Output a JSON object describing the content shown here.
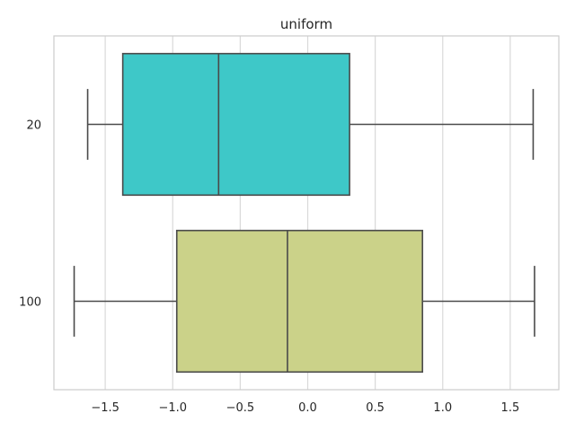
{
  "chart_data": {
    "type": "box",
    "orientation": "horizontal",
    "title": "uniform",
    "xlabel": "",
    "ylabel": "",
    "xlim": [
      -1.88,
      1.86
    ],
    "grid": "vertical",
    "x_ticks": [
      -1.5,
      -1.0,
      -0.5,
      0.0,
      0.5,
      1.0,
      1.5
    ],
    "x_tick_labels": [
      "−1.5",
      "−1.0",
      "−0.5",
      "0.0",
      "0.5",
      "1.0",
      "1.5"
    ],
    "categories": [
      "20",
      "100"
    ],
    "boxes": [
      {
        "category": "20",
        "whisker_low": -1.63,
        "q1": -1.37,
        "median": -0.66,
        "q3": 0.31,
        "whisker_high": 1.67,
        "color": "#3ec8c8"
      },
      {
        "category": "100",
        "whisker_low": -1.73,
        "q1": -0.97,
        "median": -0.15,
        "q3": 0.85,
        "whisker_high": 1.68,
        "color": "#cbd289"
      }
    ],
    "colors": {
      "line": "#4a4a4a",
      "grid": "#d9d9d9",
      "frame": "#cccccc"
    }
  }
}
